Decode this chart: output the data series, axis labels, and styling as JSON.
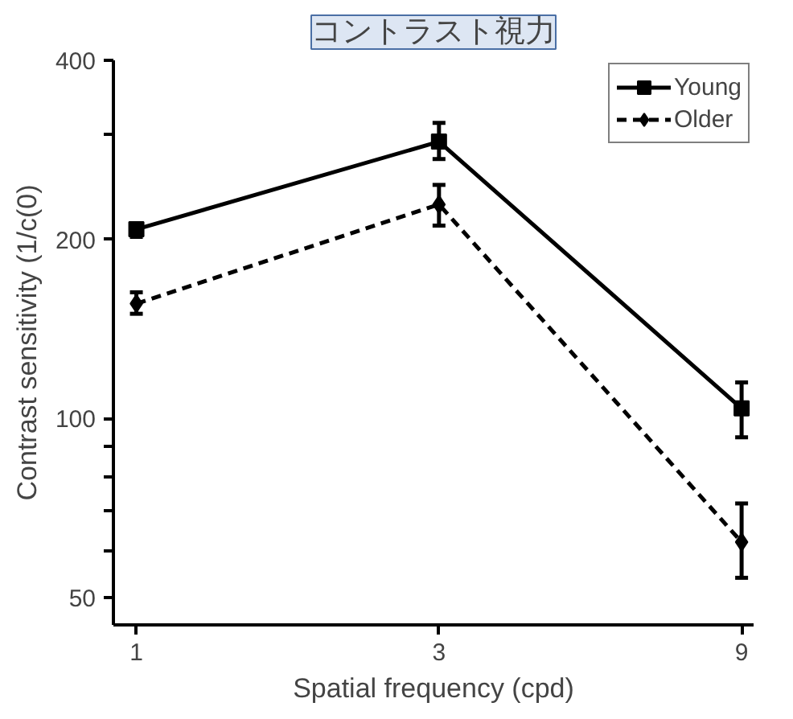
{
  "chart_data": {
    "type": "line",
    "title": "コントラスト視力",
    "xlabel": "Spatial frequency (cpd)",
    "ylabel": "Contrast sensitivity (1/c(0)",
    "x": [
      1,
      3,
      9
    ],
    "log": "xy",
    "xlim": [
      0.92,
      9.4
    ],
    "ylim": [
      45,
      400
    ],
    "xticks": [
      1,
      3,
      9
    ],
    "yticks": [
      50,
      {
        "value": 60,
        "label": null
      },
      {
        "value": 70,
        "label": null
      },
      {
        "value": 80,
        "label": null
      },
      {
        "value": 90,
        "label": null
      },
      100,
      200,
      {
        "value": 300,
        "label": null
      },
      400
    ],
    "grid": false,
    "legend": "top right",
    "series": [
      {
        "name": "Young",
        "color": "#000000",
        "values": [
          208,
          292,
          104
        ],
        "errors": [
          [
            202,
            213
          ],
          [
            273,
            314
          ],
          [
            93,
            115
          ]
        ],
        "marker": "square",
        "line_style": "solid"
      },
      {
        "name": "Older",
        "color": "#000000",
        "values": [
          156,
          229,
          62
        ],
        "errors": [
          [
            150,
            163
          ],
          [
            211,
            247
          ],
          [
            54,
            72
          ]
        ],
        "marker": "diamond",
        "line_style": "dashed"
      }
    ]
  }
}
